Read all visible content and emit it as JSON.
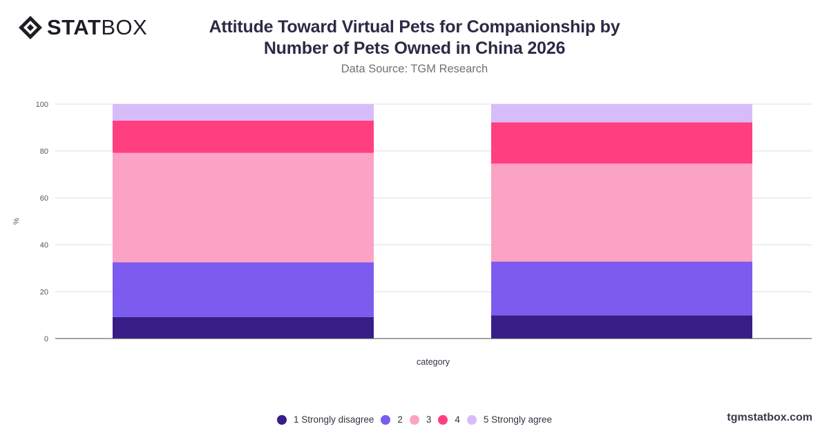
{
  "brand": {
    "logo_bold": "STAT",
    "logo_light": "BOX",
    "footer_url": "tgmstatbox.com"
  },
  "chart_data": {
    "type": "bar",
    "stacked": true,
    "title_line1": "Attitude Toward Virtual Pets for Companionship by",
    "title_line2": "Number of Pets Owned in China 2026",
    "subtitle": "Data Source: TGM Research",
    "xlabel": "category",
    "ylabel": "%",
    "ylim": [
      0,
      100
    ],
    "yticks": [
      0,
      20,
      40,
      60,
      80,
      100
    ],
    "grid": true,
    "legend_position": "bottom",
    "categories": [
      "",
      ""
    ],
    "series": [
      {
        "name": "1 Strongly disagree",
        "color": "#371e87",
        "values": [
          9.2,
          9.9
        ]
      },
      {
        "name": "2",
        "color": "#7b5cee",
        "values": [
          23.3,
          22.9
        ]
      },
      {
        "name": "3",
        "color": "#fca3c5",
        "values": [
          46.7,
          41.8
        ]
      },
      {
        "name": "4",
        "color": "#ff3f80",
        "values": [
          13.8,
          17.6
        ]
      },
      {
        "name": "5 Strongly agree",
        "color": "#d7bcfa",
        "values": [
          7.0,
          7.8
        ]
      }
    ]
  }
}
